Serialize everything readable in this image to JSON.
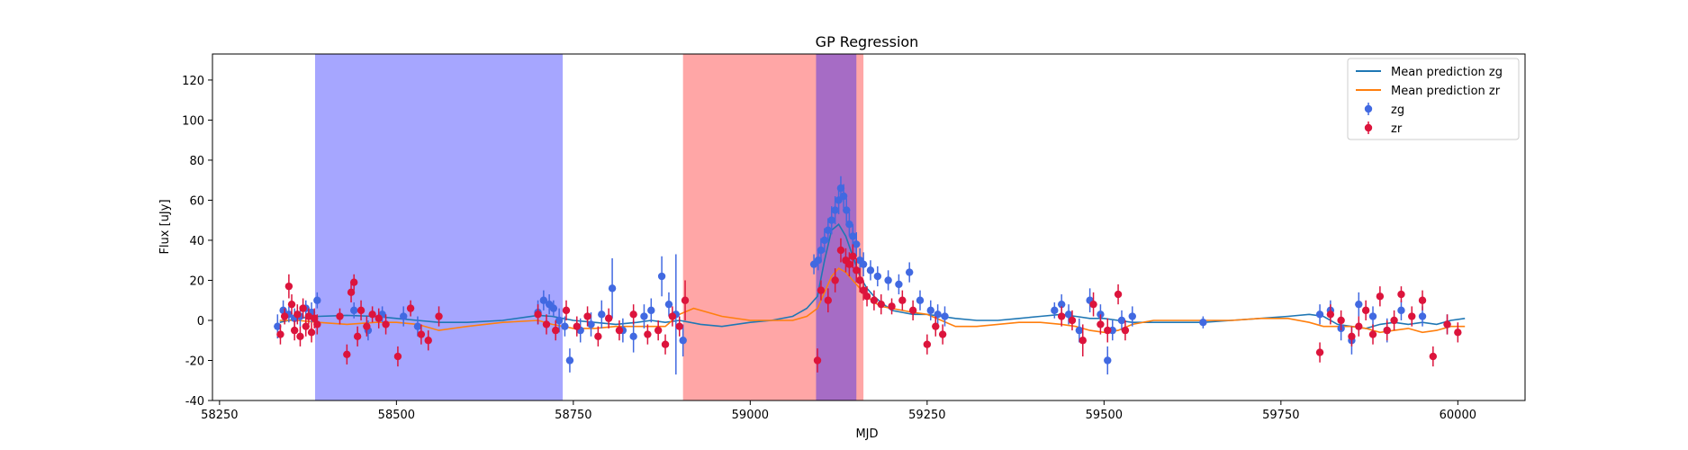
{
  "chart_data": {
    "type": "scatter",
    "title": "GP Regression",
    "xlabel": "MJD",
    "ylabel": "Flux [uJy]",
    "xlim": [
      58240,
      60095
    ],
    "ylim": [
      -40,
      133
    ],
    "xticks": [
      58250,
      58500,
      58750,
      59000,
      59250,
      59500,
      59750,
      60000
    ],
    "yticks": [
      -40,
      -20,
      0,
      20,
      40,
      60,
      80,
      100,
      120
    ],
    "grid": false,
    "legend_position": "top-right",
    "shaded_regions": [
      {
        "x0": 58385,
        "x1": 58735,
        "color": "#0000ff",
        "opacity": 0.35
      },
      {
        "x0": 58905,
        "x1": 59160,
        "color": "#ff0000",
        "opacity": 0.35
      },
      {
        "x0": 59093,
        "x1": 59150,
        "color": "#0000ff",
        "opacity": 0.35
      }
    ],
    "series": [
      {
        "name": "Mean prediction zg",
        "kind": "line",
        "color": "#1f77b4",
        "x": [
          58335,
          58360,
          58390,
          58430,
          58470,
          58500,
          58530,
          58560,
          58600,
          58650,
          58700,
          58720,
          58750,
          58780,
          58810,
          58840,
          58860,
          58880,
          58900,
          58930,
          58960,
          59000,
          59030,
          59060,
          59080,
          59095,
          59105,
          59115,
          59125,
          59135,
          59145,
          59155,
          59165,
          59175,
          59185,
          59200,
          59215,
          59230,
          59250,
          59270,
          59290,
          59320,
          59350,
          59380,
          59410,
          59440,
          59460,
          59480,
          59500,
          59520,
          59540,
          59570,
          59600,
          59640,
          59680,
          59720,
          59760,
          59790,
          59810,
          59830,
          59850,
          59870,
          59890,
          59910,
          59930,
          59950,
          59970,
          59990,
          60010
        ],
        "y": [
          -1,
          1,
          2,
          2.5,
          2,
          1,
          0,
          -1,
          -1,
          0,
          2.5,
          2,
          0,
          -1,
          -2,
          -1,
          0,
          -1,
          0,
          -2,
          -3,
          -1,
          0,
          2,
          6,
          12,
          30,
          45,
          48,
          42,
          32,
          22,
          16,
          12,
          9,
          5,
          4,
          3,
          3,
          2,
          1,
          0,
          0,
          1,
          2,
          3,
          2,
          1,
          1,
          0,
          -1,
          -1,
          -1,
          -1,
          0,
          1,
          2,
          3,
          2,
          -2,
          -3,
          -4,
          -2,
          -1,
          -2,
          -1,
          -2,
          0,
          1
        ]
      },
      {
        "name": "Mean prediction zr",
        "kind": "line",
        "color": "#ff7f0e",
        "x": [
          58335,
          58360,
          58390,
          58430,
          58470,
          58500,
          58530,
          58560,
          58600,
          58650,
          58700,
          58720,
          58750,
          58780,
          58810,
          58840,
          58860,
          58880,
          58900,
          58920,
          58960,
          59000,
          59030,
          59060,
          59080,
          59095,
          59105,
          59115,
          59125,
          59135,
          59145,
          59155,
          59165,
          59175,
          59185,
          59200,
          59215,
          59230,
          59250,
          59270,
          59290,
          59320,
          59350,
          59380,
          59410,
          59440,
          59460,
          59480,
          59500,
          59520,
          59540,
          59570,
          59600,
          59640,
          59680,
          59720,
          59760,
          59790,
          59810,
          59830,
          59850,
          59870,
          59890,
          59910,
          59930,
          59950,
          59970,
          59990,
          60010
        ],
        "y": [
          0,
          0,
          -1,
          -2,
          -1,
          -1,
          -2,
          -5,
          -3,
          -1,
          0,
          -2,
          -4,
          -4,
          -3,
          -3,
          -3,
          -3,
          3,
          6,
          2,
          0,
          0,
          0,
          2,
          6,
          14,
          22,
          26,
          24,
          20,
          16,
          12,
          9,
          7,
          6,
          5,
          4,
          3,
          0,
          -3,
          -3,
          -2,
          -1,
          -1,
          -2,
          -3,
          -5,
          -6,
          -5,
          -2,
          0,
          0,
          0,
          0,
          1,
          1,
          -1,
          -3,
          -3,
          -3,
          -4,
          -6,
          -5,
          -4,
          -6,
          -5,
          -3,
          -3
        ]
      },
      {
        "name": "zg",
        "kind": "errorbar",
        "color": "#4169e1",
        "x": [
          58332,
          58340,
          58348,
          58356,
          58364,
          58372,
          58380,
          58388,
          58440,
          58460,
          58480,
          58510,
          58530,
          58700,
          58708,
          58716,
          58722,
          58730,
          58738,
          58745,
          58760,
          58775,
          58790,
          58805,
          58820,
          58835,
          58850,
          58860,
          58875,
          58885,
          58895,
          58905,
          59090,
          59096,
          59100,
          59105,
          59110,
          59115,
          59120,
          59125,
          59128,
          59132,
          59136,
          59140,
          59145,
          59150,
          59155,
          59160,
          59170,
          59180,
          59195,
          59210,
          59225,
          59240,
          59255,
          59265,
          59275,
          59430,
          59440,
          59450,
          59465,
          59480,
          59495,
          59505,
          59512,
          59525,
          59540,
          59640,
          59805,
          59820,
          59835,
          59850,
          59860,
          59880,
          59900,
          59920,
          59950,
          59985
        ],
        "y": [
          -3,
          5,
          3,
          1,
          2,
          6,
          4,
          10,
          5,
          -5,
          3,
          2,
          -3,
          4,
          10,
          8,
          6,
          0,
          -3,
          -20,
          -5,
          -2,
          3,
          16,
          -5,
          -8,
          2,
          5,
          22,
          8,
          3,
          -10,
          28,
          30,
          35,
          40,
          45,
          50,
          55,
          60,
          66,
          62,
          55,
          48,
          42,
          38,
          30,
          28,
          25,
          22,
          20,
          18,
          24,
          10,
          5,
          3,
          2,
          5,
          8,
          3,
          -5,
          10,
          3,
          -20,
          -5,
          0,
          2,
          -1,
          3,
          5,
          -4,
          -10,
          8,
          2,
          -5,
          5,
          2,
          -2
        ],
        "yerr": [
          6,
          5,
          4,
          5,
          5,
          4,
          5,
          4,
          4,
          5,
          4,
          5,
          5,
          6,
          5,
          5,
          4,
          6,
          5,
          6,
          6,
          6,
          7,
          15,
          6,
          8,
          6,
          6,
          10,
          6,
          30,
          8,
          5,
          5,
          6,
          6,
          6,
          7,
          7,
          7,
          6,
          6,
          6,
          6,
          6,
          6,
          6,
          6,
          5,
          5,
          5,
          5,
          5,
          5,
          5,
          5,
          5,
          4,
          5,
          5,
          6,
          6,
          5,
          7,
          5,
          5,
          5,
          3,
          5,
          5,
          6,
          7,
          6,
          5,
          6,
          5,
          5,
          5
        ]
      },
      {
        "name": "zr",
        "kind": "errorbar",
        "color": "#dc143c",
        "x": [
          58336,
          58342,
          58348,
          58352,
          58356,
          58360,
          58364,
          58368,
          58372,
          58376,
          58380,
          58384,
          58388,
          58420,
          58430,
          58436,
          58440,
          58445,
          58450,
          58458,
          58466,
          58475,
          58485,
          58502,
          58520,
          58535,
          58545,
          58560,
          58700,
          58712,
          58725,
          58740,
          58755,
          58770,
          58785,
          58800,
          58815,
          58835,
          58855,
          58870,
          58880,
          58890,
          58900,
          58908,
          59095,
          59100,
          59110,
          59120,
          59128,
          59135,
          59140,
          59145,
          59150,
          59155,
          59160,
          59165,
          59175,
          59185,
          59200,
          59215,
          59230,
          59250,
          59262,
          59272,
          59440,
          59455,
          59470,
          59485,
          59495,
          59505,
          59520,
          59530,
          59805,
          59820,
          59835,
          59850,
          59860,
          59870,
          59880,
          59890,
          59900,
          59910,
          59920,
          59935,
          59950,
          59965,
          59985,
          60000
        ],
        "y": [
          -7,
          2,
          17,
          8,
          -5,
          3,
          -8,
          6,
          -3,
          2,
          -6,
          1,
          -2,
          2,
          -17,
          14,
          19,
          -8,
          5,
          -3,
          3,
          1,
          -2,
          -18,
          6,
          -7,
          -10,
          2,
          3,
          -2,
          -5,
          5,
          -3,
          2,
          -8,
          1,
          -5,
          3,
          -7,
          -5,
          -12,
          2,
          -3,
          10,
          -20,
          15,
          10,
          20,
          35,
          30,
          28,
          32,
          25,
          20,
          15,
          12,
          10,
          8,
          7,
          10,
          5,
          -12,
          -3,
          -7,
          2,
          0,
          -10,
          8,
          -2,
          -5,
          13,
          -5,
          -16,
          3,
          0,
          -8,
          -3,
          5,
          -7,
          12,
          -5,
          0,
          13,
          2,
          10,
          -18,
          -2,
          -6
        ],
        "yerr": [
          5,
          4,
          6,
          5,
          5,
          5,
          5,
          5,
          5,
          4,
          5,
          5,
          5,
          4,
          5,
          5,
          4,
          5,
          5,
          5,
          4,
          5,
          5,
          5,
          4,
          5,
          5,
          5,
          5,
          5,
          5,
          5,
          5,
          5,
          5,
          5,
          5,
          5,
          5,
          5,
          5,
          5,
          5,
          10,
          6,
          5,
          6,
          6,
          6,
          6,
          6,
          6,
          6,
          6,
          5,
          5,
          5,
          5,
          4,
          5,
          5,
          5,
          5,
          5,
          5,
          5,
          8,
          6,
          5,
          6,
          5,
          5,
          5,
          5,
          5,
          5,
          5,
          5,
          5,
          5,
          5,
          5,
          4,
          5,
          5,
          5,
          5,
          5
        ]
      }
    ],
    "legend": [
      {
        "label": "Mean prediction zg",
        "kind": "line",
        "color": "#1f77b4"
      },
      {
        "label": "Mean prediction zr",
        "kind": "line",
        "color": "#ff7f0e"
      },
      {
        "label": "zg",
        "kind": "errorbar",
        "color": "#4169e1"
      },
      {
        "label": "zr",
        "kind": "errorbar",
        "color": "#dc143c"
      }
    ]
  }
}
